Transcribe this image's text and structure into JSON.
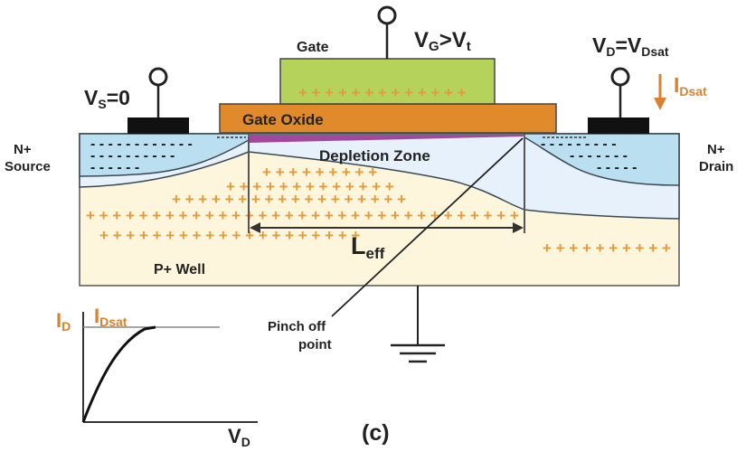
{
  "terminals": {
    "gate_label": "Gate",
    "vg_main": "V",
    "vg_sub": "G",
    "vg_rest": ">V",
    "vt_sub": "t",
    "vs_main": "V",
    "vs_sub": "S",
    "vs_rest": "=0",
    "vd_main": "V",
    "vd_sub": "D",
    "vd_eq": "=V",
    "vd_sub2": "Dsat",
    "id_main": "I",
    "id_sub": "Dsat"
  },
  "regions": {
    "gate_oxide": "Gate Oxide",
    "depletion_zone": "Depletion Zone",
    "source_line1": "N+",
    "source_line2": "Source",
    "drain_line1": "N+",
    "drain_line2": "Drain",
    "p_well": "P+ Well",
    "leff_main": "L",
    "leff_sub": "eff",
    "pinch_line1": "Pinch off",
    "pinch_line2": "point"
  },
  "inset": {
    "y_main": "I",
    "y_sub": "D",
    "sat_main": "I",
    "sat_sub": "Dsat",
    "x_main": "V",
    "x_sub": "D"
  },
  "caption": "(c)",
  "colors": {
    "gate": "#b5d35a",
    "oxide": "#e08a2c",
    "n_region": "#b9dff0",
    "depletion": "#e6f1fb",
    "p_well": "#fdf6dc",
    "contact": "#111111",
    "channel": "#a0489c",
    "accent_orange": "#d9822b"
  }
}
